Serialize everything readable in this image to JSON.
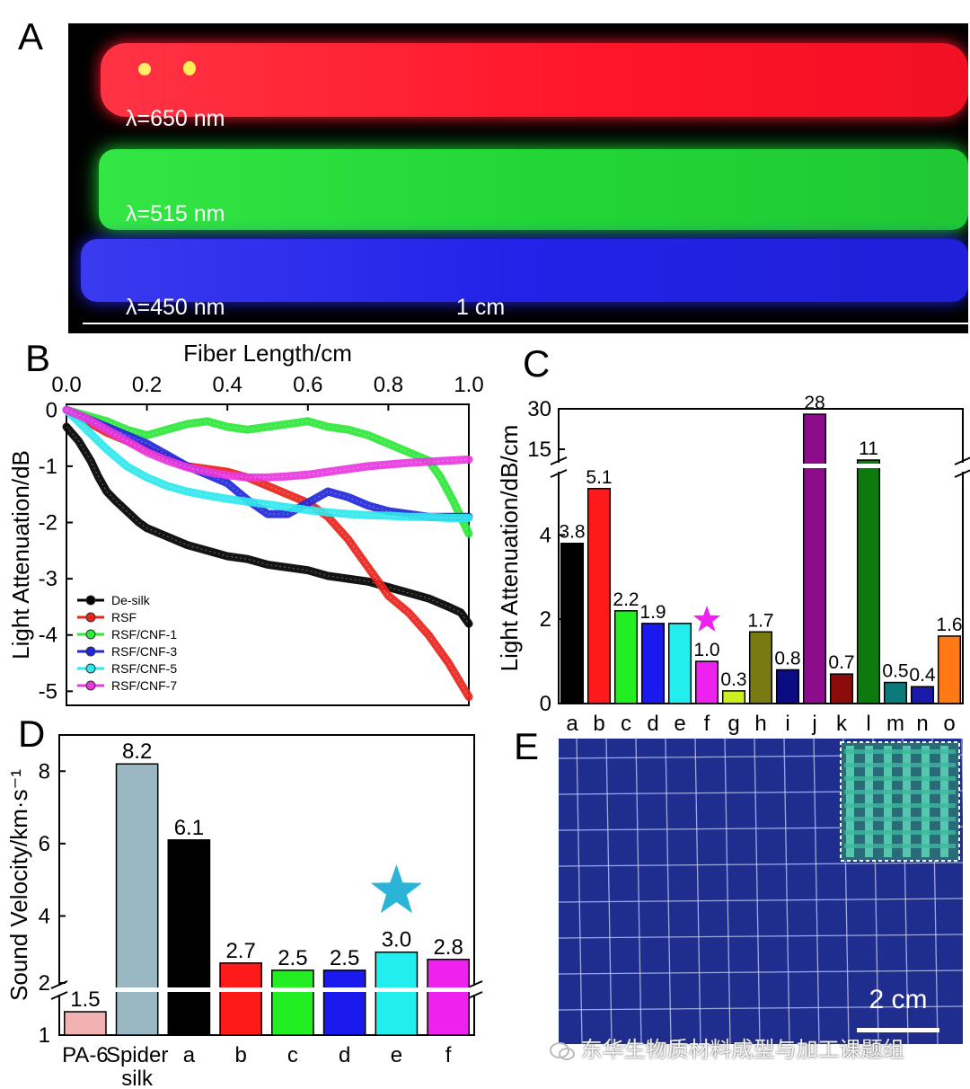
{
  "panels": {
    "A": "A",
    "B": "B",
    "C": "C",
    "D": "D",
    "E": "E"
  },
  "panelA": {
    "labels": [
      "λ=650 nm",
      "λ=515 nm",
      "λ=450 nm"
    ],
    "scale_bar": "1 cm",
    "fiber_colors": [
      "#ff1a2e",
      "#22e23a",
      "#2222e8"
    ]
  },
  "panelE": {
    "scale_bar": "2 cm",
    "watermark": "东华生物质材料成型与加工课题组"
  },
  "chart_data": [
    {
      "id": "B",
      "type": "line",
      "title": "",
      "xlabel": "Fiber Length/cm",
      "ylabel": "Light Attenuation/dB",
      "xlim": [
        0,
        1.0
      ],
      "ylim": [
        -5.25,
        0.1
      ],
      "xticks": [
        "0.0",
        "0.2",
        "0.4",
        "0.6",
        "0.8",
        "1.0"
      ],
      "yticks": [
        "0",
        "-1",
        "-2",
        "-3",
        "-4",
        "-5"
      ],
      "legend_position": "bottom-left",
      "series": [
        {
          "name": "De-silk",
          "color": "#000000",
          "x": [
            0,
            0.03,
            0.06,
            0.08,
            0.1,
            0.12,
            0.15,
            0.18,
            0.2,
            0.25,
            0.3,
            0.35,
            0.4,
            0.45,
            0.5,
            0.55,
            0.6,
            0.65,
            0.7,
            0.75,
            0.8,
            0.85,
            0.9,
            0.95,
            0.98,
            1.0
          ],
          "y": [
            -0.3,
            -0.55,
            -0.9,
            -1.2,
            -1.45,
            -1.6,
            -1.8,
            -2.0,
            -2.1,
            -2.25,
            -2.4,
            -2.5,
            -2.6,
            -2.65,
            -2.75,
            -2.8,
            -2.85,
            -2.95,
            -3.0,
            -3.05,
            -3.15,
            -3.25,
            -3.35,
            -3.5,
            -3.6,
            -3.8
          ]
        },
        {
          "name": "RSF",
          "color": "#e8241c",
          "x": [
            0,
            0.05,
            0.1,
            0.15,
            0.2,
            0.25,
            0.3,
            0.35,
            0.4,
            0.45,
            0.5,
            0.55,
            0.6,
            0.65,
            0.7,
            0.75,
            0.8,
            0.85,
            0.9,
            0.95,
            1.0
          ],
          "y": [
            0,
            -0.2,
            -0.4,
            -0.55,
            -0.7,
            -0.85,
            -1.0,
            -1.05,
            -1.1,
            -1.2,
            -1.35,
            -1.5,
            -1.65,
            -1.9,
            -2.3,
            -2.8,
            -3.3,
            -3.6,
            -4.0,
            -4.5,
            -5.1
          ]
        },
        {
          "name": "RSF/CNF-1",
          "color": "#2ee83a",
          "x": [
            0,
            0.05,
            0.1,
            0.15,
            0.2,
            0.25,
            0.3,
            0.35,
            0.4,
            0.45,
            0.5,
            0.55,
            0.6,
            0.65,
            0.7,
            0.75,
            0.8,
            0.85,
            0.9,
            0.93,
            0.96,
            1.0
          ],
          "y": [
            0,
            -0.1,
            -0.2,
            -0.35,
            -0.45,
            -0.35,
            -0.25,
            -0.2,
            -0.3,
            -0.35,
            -0.3,
            -0.25,
            -0.2,
            -0.3,
            -0.35,
            -0.45,
            -0.6,
            -0.75,
            -0.9,
            -1.2,
            -1.6,
            -2.2
          ]
        },
        {
          "name": "RSF/CNF-3",
          "color": "#2228d8",
          "x": [
            0,
            0.05,
            0.1,
            0.15,
            0.2,
            0.25,
            0.3,
            0.35,
            0.4,
            0.45,
            0.5,
            0.55,
            0.6,
            0.65,
            0.7,
            0.75,
            0.8,
            0.85,
            0.9,
            0.95,
            1.0
          ],
          "y": [
            0,
            -0.15,
            -0.3,
            -0.45,
            -0.6,
            -0.8,
            -1.0,
            -1.15,
            -1.3,
            -1.6,
            -1.85,
            -1.85,
            -1.65,
            -1.45,
            -1.55,
            -1.7,
            -1.8,
            -1.85,
            -1.9,
            -1.9,
            -1.9
          ]
        },
        {
          "name": "RSF/CNF-5",
          "color": "#2ee8ee",
          "x": [
            0,
            0.05,
            0.1,
            0.15,
            0.2,
            0.25,
            0.3,
            0.35,
            0.4,
            0.45,
            0.5,
            0.55,
            0.6,
            0.65,
            0.7,
            0.75,
            0.8,
            0.85,
            0.9,
            0.95,
            1.0
          ],
          "y": [
            0,
            -0.35,
            -0.7,
            -1.0,
            -1.2,
            -1.35,
            -1.45,
            -1.52,
            -1.58,
            -1.63,
            -1.68,
            -1.73,
            -1.78,
            -1.82,
            -1.85,
            -1.87,
            -1.88,
            -1.9,
            -1.9,
            -1.92,
            -1.92
          ]
        },
        {
          "name": "RSF/CNF-7",
          "color": "#e838e0",
          "x": [
            0,
            0.05,
            0.1,
            0.15,
            0.2,
            0.25,
            0.3,
            0.35,
            0.4,
            0.45,
            0.5,
            0.55,
            0.6,
            0.65,
            0.7,
            0.75,
            0.8,
            0.85,
            0.9,
            0.95,
            1.0
          ],
          "y": [
            0,
            -0.15,
            -0.35,
            -0.55,
            -0.75,
            -0.9,
            -1.02,
            -1.1,
            -1.16,
            -1.2,
            -1.2,
            -1.18,
            -1.15,
            -1.1,
            -1.05,
            -1.0,
            -0.97,
            -0.94,
            -0.92,
            -0.9,
            -0.88
          ]
        }
      ]
    },
    {
      "id": "C",
      "type": "bar",
      "title": "",
      "xlabel": "",
      "ylabel": "Light Attenuation/dB/cm",
      "ylim_lower": [
        0,
        5.5
      ],
      "ylim_upper": [
        10,
        30
      ],
      "yticks": [
        "0",
        "2",
        "4",
        "15",
        "30"
      ],
      "categories": [
        "a",
        "b",
        "c",
        "d",
        "e",
        "f",
        "g",
        "h",
        "i",
        "j",
        "k",
        "l",
        "m",
        "n",
        "o"
      ],
      "values": [
        3.8,
        5.1,
        2.2,
        1.9,
        1.9,
        1.0,
        0.3,
        1.7,
        0.8,
        28,
        0.7,
        11,
        0.5,
        0.4,
        1.6
      ],
      "labels": [
        "3.8",
        "5.1",
        "2.2",
        "1.9",
        "",
        "1.0",
        "0.3",
        "1.7",
        "0.8",
        "28",
        "0.7",
        "11",
        "0.5",
        "0.4",
        "1.6"
      ],
      "colors": [
        "#000000",
        "#ff1a1a",
        "#22ee22",
        "#1a1aee",
        "#22eeee",
        "#ee22ee",
        "#ccee22",
        "#7a7a14",
        "#0c0c82",
        "#8c0c8c",
        "#8c0c0c",
        "#0c7a0c",
        "#0c7a7a",
        "#1a1aaa",
        "#ff7a14"
      ],
      "highlight": "f",
      "highlight_color": "#ee22ee"
    },
    {
      "id": "D",
      "type": "bar",
      "title": "",
      "xlabel": "",
      "ylabel": "Sound Velocity/km·s⁻¹",
      "ylim": [
        1,
        9
      ],
      "yticks": [
        "1",
        "2",
        "4",
        "6",
        "8"
      ],
      "categories": [
        "PA-6",
        "Spider silk",
        "a",
        "b",
        "c",
        "d",
        "e",
        "f"
      ],
      "values": [
        1.5,
        8.2,
        6.1,
        2.7,
        2.5,
        2.5,
        3.0,
        2.8
      ],
      "labels": [
        "1.5",
        "8.2",
        "6.1",
        "2.7",
        "2.5",
        "2.5",
        "3.0",
        "2.8"
      ],
      "colors": [
        "#f2b2b2",
        "#9ab8c4",
        "#000000",
        "#ff1a1a",
        "#22ee22",
        "#1a1aee",
        "#22eeee",
        "#ee22ee"
      ],
      "highlight": "e",
      "highlight_color": "#2bb4d8"
    }
  ]
}
